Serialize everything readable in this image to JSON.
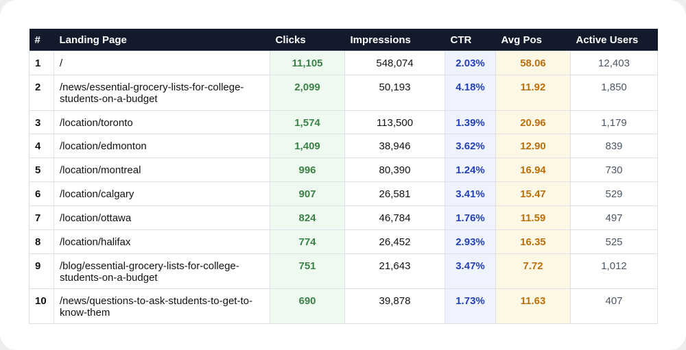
{
  "table": {
    "headers": [
      "#",
      "Landing Page",
      "Clicks",
      "Impressions",
      "CTR",
      "Avg Pos",
      "Active Users"
    ],
    "rows": [
      [
        "1",
        "/",
        "11,105",
        "548,074",
        "2.03%",
        "58.06",
        "12,403"
      ],
      [
        "2",
        "/news/essential-grocery-lists-for-college-students-on-a-budget",
        "2,099",
        "50,193",
        "4.18%",
        "11.92",
        "1,850"
      ],
      [
        "3",
        "/location/toronto",
        "1,574",
        "113,500",
        "1.39%",
        "20.96",
        "1,179"
      ],
      [
        "4",
        "/location/edmonton",
        "1,409",
        "38,946",
        "3.62%",
        "12.90",
        "839"
      ],
      [
        "5",
        "/location/montreal",
        "996",
        "80,390",
        "1.24%",
        "16.94",
        "730"
      ],
      [
        "6",
        "/location/calgary",
        "907",
        "26,581",
        "3.41%",
        "15.47",
        "529"
      ],
      [
        "7",
        "/location/ottawa",
        "824",
        "46,784",
        "1.76%",
        "11.59",
        "497"
      ],
      [
        "8",
        "/location/halifax",
        "774",
        "26,452",
        "2.93%",
        "16.35",
        "525"
      ],
      [
        "9",
        "/blog/essential-grocery-lists-for-college-students-on-a-budget",
        "751",
        "21,643",
        "3.47%",
        "7.72",
        "1,012"
      ],
      [
        "10",
        "/news/questions-to-ask-students-to-get-to-know-them",
        "690",
        "39,878",
        "1.73%",
        "11.63",
        "407"
      ]
    ]
  }
}
